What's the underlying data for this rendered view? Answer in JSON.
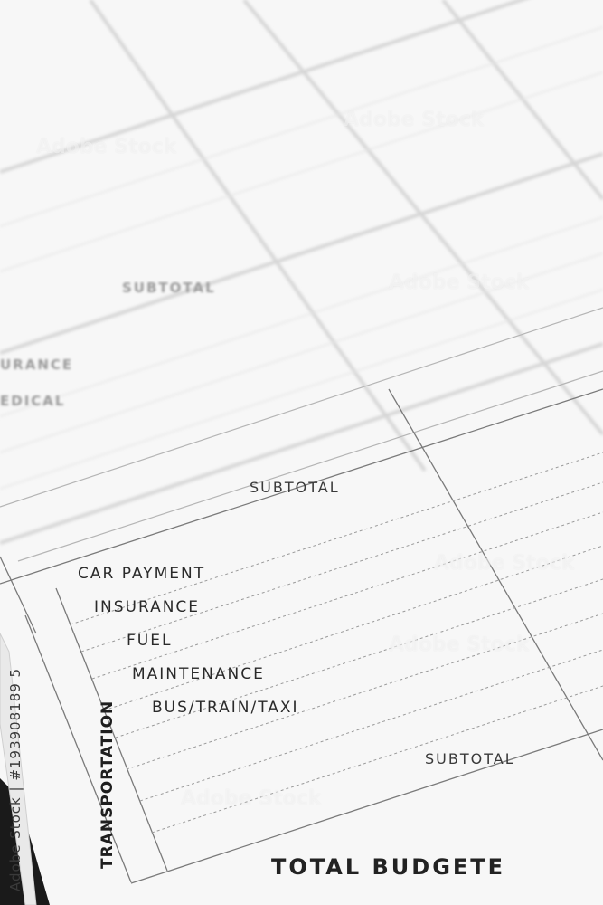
{
  "section_upper": {
    "subtotal_label": "SUBTOTAL",
    "items": [
      "URANCE",
      "EDICAL"
    ]
  },
  "section_middle": {
    "subtotal_label": "SUBTOTAL"
  },
  "transportation": {
    "category": "TRANSPORTATION",
    "items": [
      "CAR PAYMENT",
      "INSURANCE",
      "FUEL",
      "MAINTENANCE",
      "BUS/TRAIN/TAXI"
    ],
    "subtotal_label": "SUBTOTAL"
  },
  "total_label": "TOTAL BUDGETE",
  "watermark": "Adobe Stock",
  "credit": "Adobe Stock | #193908189 5",
  "colors": {
    "paper": "#f7f7f7",
    "ink": "#2a2a2a",
    "rule": "#8a8a8a",
    "book_edge": "#1a1a1a"
  }
}
